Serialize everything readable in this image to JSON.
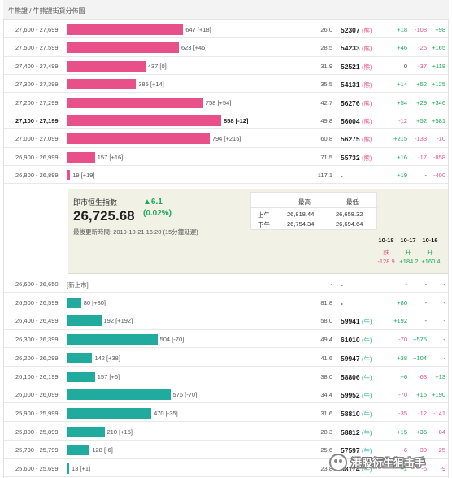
{
  "header": {
    "breadcrumb": "牛熊證 / 牛熊證街貨分佈圖"
  },
  "colors": {
    "bear": "#e8508a",
    "bull": "#21aa9e",
    "positive": "#1aaa55",
    "negative": "#e8508a"
  },
  "scale_max": 858,
  "bear_rows": [
    {
      "range": "27,600 - 27,699",
      "qty": 647,
      "label": "647 [+18]",
      "pct": "26.0",
      "index": "52307",
      "tag": "(熊)",
      "c1": "+18",
      "c2": "-108",
      "c3": "+98"
    },
    {
      "range": "27,500 - 27,599",
      "qty": 623,
      "label": "623 [+46]",
      "pct": "28.5",
      "index": "54233",
      "tag": "(熊)",
      "c1": "+46",
      "c2": "-25",
      "c3": "+165"
    },
    {
      "range": "27,400 - 27,499",
      "qty": 437,
      "label": "437 [0]",
      "pct": "31.9",
      "index": "52521",
      "tag": "(熊)",
      "c1": "0",
      "c2": "-37",
      "c3": "+118"
    },
    {
      "range": "27,300 - 27,399",
      "qty": 385,
      "label": "385 [+14]",
      "pct": "35.5",
      "index": "54131",
      "tag": "(熊)",
      "c1": "+14",
      "c2": "+52",
      "c3": "+125"
    },
    {
      "range": "27,200 - 27,299",
      "qty": 758,
      "label": "758 [+54]",
      "pct": "42.7",
      "index": "56276",
      "tag": "(熊)",
      "c1": "+54",
      "c2": "+29",
      "c3": "+346"
    },
    {
      "range": "27,100 - 27,199",
      "qty": 858,
      "label": "858 [-12]",
      "pct": "49.8",
      "index": "56004",
      "tag": "(熊)",
      "c1": "-12",
      "c2": "+52",
      "c3": "+581",
      "bold": true
    },
    {
      "range": "27,000 - 27,099",
      "qty": 794,
      "label": "794 [+215]",
      "pct": "60.8",
      "index": "56275",
      "tag": "(熊)",
      "c1": "+215",
      "c2": "-133",
      "c3": "-10"
    },
    {
      "range": "26,900 - 26,999",
      "qty": 157,
      "label": "157 [+16]",
      "pct": "71.5",
      "index": "55732",
      "tag": "(熊)",
      "c1": "+16",
      "c2": "-17",
      "c3": "-858"
    },
    {
      "range": "26,800 - 26,899",
      "qty": 19,
      "label": "19 [+19]",
      "pct": "117.1",
      "index": "-",
      "tag": "",
      "c1": "+19",
      "c2": "-",
      "c3": "-400"
    }
  ],
  "summary": {
    "title": "即市恒生指數",
    "value": "26,725.68",
    "change": "▲6.1",
    "change_pct": "(0.02%)",
    "updated": "最後更新時間: 2019-10-21 16:20 (15分鐘延遲)",
    "hl_headers": [
      "最高",
      "最低"
    ],
    "hl_rows": [
      {
        "label": "上午",
        "high": "26,818.44",
        "low": "26,658.32"
      },
      {
        "label": "下午",
        "high": "26,754.34",
        "low": "26,694.64"
      }
    ],
    "days": [
      {
        "date": "10-18",
        "dir": "跌",
        "net": "-128.9"
      },
      {
        "date": "10-17",
        "dir": "升",
        "net": "+184.2"
      },
      {
        "date": "10-16",
        "dir": "升",
        "net": "+160.4"
      }
    ]
  },
  "bull_rows": [
    {
      "range": "26,600 - 26,650",
      "qty": 0,
      "label": "[新上市]",
      "pct": "-",
      "index": "-",
      "tag": "",
      "c1": "-",
      "c2": "-",
      "c3": "-"
    },
    {
      "range": "26,500 - 26,599",
      "qty": 80,
      "label": "80 [+80]",
      "pct": "81.8",
      "index": "-",
      "tag": "",
      "c1": "+80",
      "c2": "-",
      "c3": "-"
    },
    {
      "range": "26,400 - 26,499",
      "qty": 192,
      "label": "192 [+192]",
      "pct": "58.0",
      "index": "59941",
      "tag": "(牛)",
      "c1": "+192",
      "c2": "-",
      "c3": "-"
    },
    {
      "range": "26,300 - 26,399",
      "qty": 504,
      "label": "504 [-70]",
      "pct": "49.4",
      "index": "61010",
      "tag": "(牛)",
      "c1": "-70",
      "c2": "+575",
      "c3": "-"
    },
    {
      "range": "26,200 - 26,299",
      "qty": 142,
      "label": "142 [+38]",
      "pct": "41.6",
      "index": "59947",
      "tag": "(牛)",
      "c1": "+38",
      "c2": "+104",
      "c3": "-"
    },
    {
      "range": "26,100 - 26,199",
      "qty": 157,
      "label": "157 [+6]",
      "pct": "38.0",
      "index": "58806",
      "tag": "(牛)",
      "c1": "+6",
      "c2": "-63",
      "c3": "+13"
    },
    {
      "range": "26,000 - 26,099",
      "qty": 576,
      "label": "576 [-70]",
      "pct": "34.4",
      "index": "59952",
      "tag": "(牛)",
      "c1": "-70",
      "c2": "+15",
      "c3": "+190"
    },
    {
      "range": "25,900 - 25,999",
      "qty": 470,
      "label": "470 [-35]",
      "pct": "31.6",
      "index": "58810",
      "tag": "(牛)",
      "c1": "-35",
      "c2": "-12",
      "c3": "-141"
    },
    {
      "range": "25,800 - 25,899",
      "qty": 210,
      "label": "210 [+15]",
      "pct": "28.3",
      "index": "58812",
      "tag": "(牛)",
      "c1": "+15",
      "c2": "+35",
      "c3": "-84"
    },
    {
      "range": "25,700 - 25,799",
      "qty": 128,
      "label": "128 [-6]",
      "pct": "25.6",
      "index": "57597",
      "tag": "(牛)",
      "c1": "-6",
      "c2": "-39",
      "c3": "-25"
    },
    {
      "range": "25,600 - 25,699",
      "qty": 13,
      "label": "13 [+1]",
      "pct": "23.8",
      "index": "58174",
      "tag": "(牛)",
      "c1": "+1",
      "c2": "-5",
      "c3": "-9"
    }
  ],
  "watermark": "港股衍生狙击手"
}
